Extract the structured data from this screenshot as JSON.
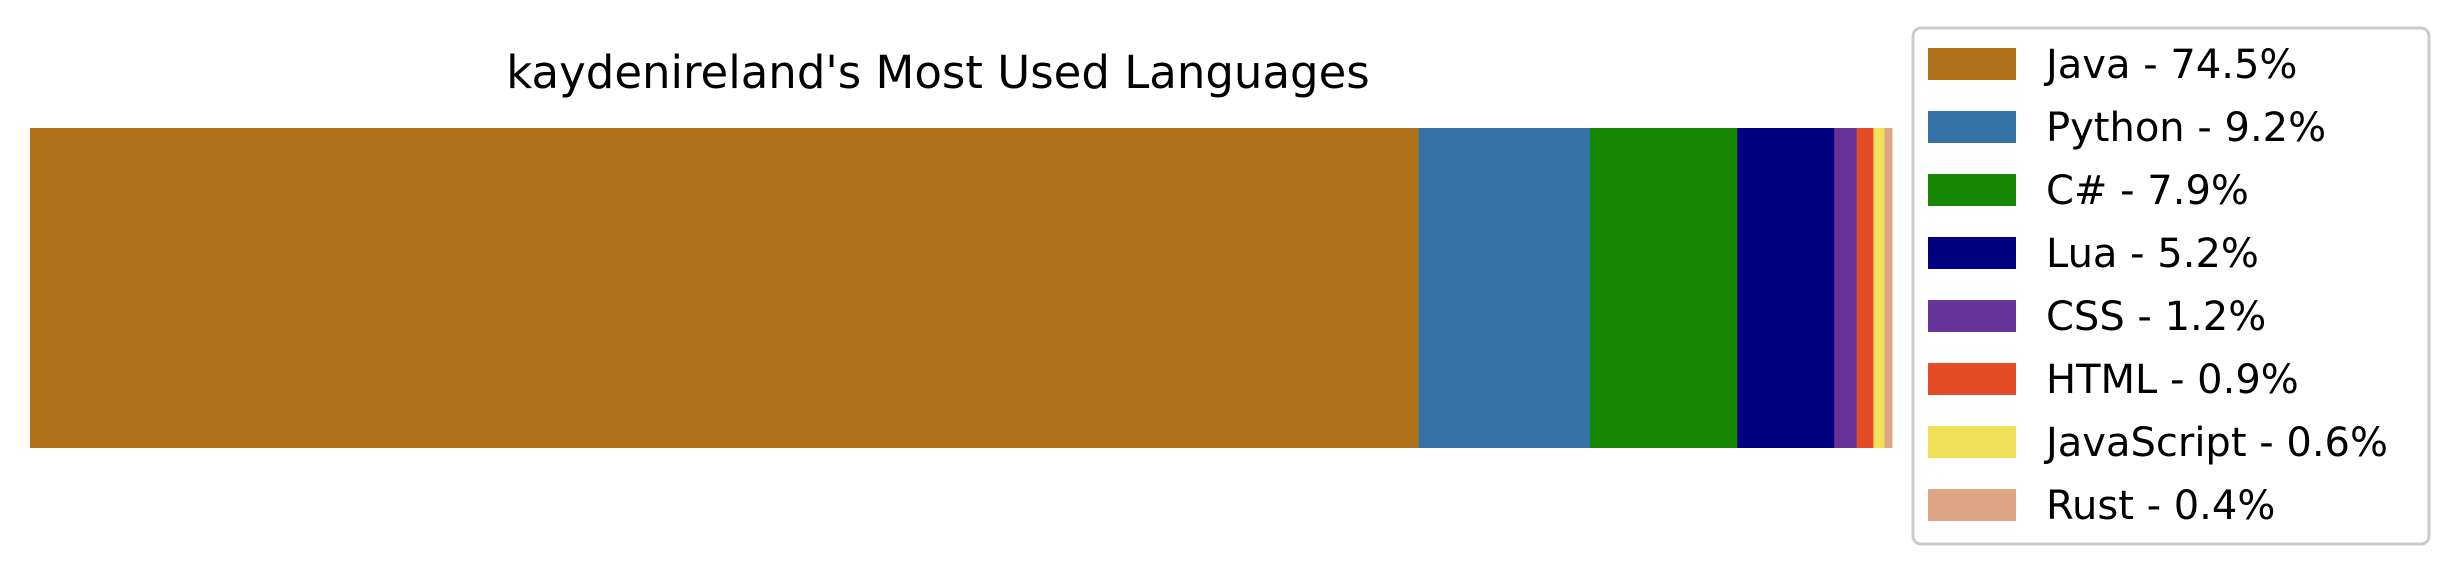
{
  "chart_data": {
    "type": "bar",
    "orientation": "horizontal-stacked",
    "title": "kaydenireland's Most Used Languages",
    "unit": "%",
    "legend_position": "right",
    "grid": false,
    "axes_visible": false,
    "series": [
      {
        "name": "Java",
        "value": 74.5,
        "color": "#b07219",
        "label": "Java - 74.5%"
      },
      {
        "name": "Python",
        "value": 9.2,
        "color": "#3572a5",
        "label": "Python - 9.2%"
      },
      {
        "name": "C#",
        "value": 7.9,
        "color": "#178600",
        "label": "C# - 7.9%"
      },
      {
        "name": "Lua",
        "value": 5.2,
        "color": "#000080",
        "label": "Lua - 5.2%"
      },
      {
        "name": "CSS",
        "value": 1.2,
        "color": "#663399",
        "label": "CSS - 1.2%"
      },
      {
        "name": "HTML",
        "value": 0.9,
        "color": "#e34c26",
        "label": "HTML - 0.9%"
      },
      {
        "name": "JavaScript",
        "value": 0.6,
        "color": "#f1e05a",
        "label": "JavaScript - 0.6%"
      },
      {
        "name": "Rust",
        "value": 0.4,
        "color": "#dea584",
        "label": "Rust - 0.4%"
      }
    ]
  }
}
